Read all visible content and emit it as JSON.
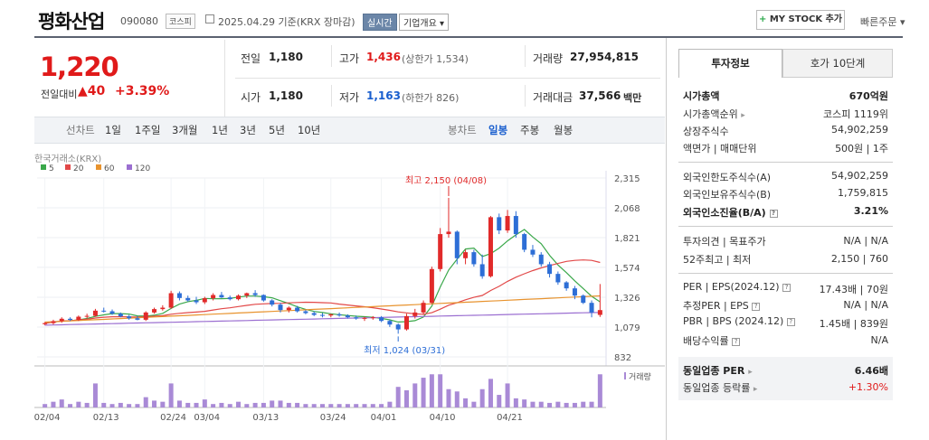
{
  "header": {
    "company_name": "평화산업",
    "stock_code": "090080",
    "market_tag": "코스피",
    "date_text": "2025.04.29  기준(KRX 장마감)",
    "realtime_label": "실시간",
    "overview_label": "기업개요 ▾",
    "mystock_plus": "+",
    "mystock_label": "MY STOCK 추가",
    "quick_order_label": "빠른주문 ▾"
  },
  "price": {
    "current": "1,220",
    "change_label": "전일대비",
    "change_arrow": "▲",
    "change_amount": "40",
    "change_pct": "+3.39%"
  },
  "quote": {
    "prev_close_label": "전일",
    "prev_close": "1,180",
    "open_label": "시가",
    "open": "1,180",
    "high_label": "고가",
    "high": "1,436",
    "upper_limit": "(상한가 1,534)",
    "low_label": "저가",
    "low": "1,163",
    "lower_limit": "(하한가 826)",
    "volume_label": "거래량",
    "volume": "27,954,815",
    "amount_label": "거래대금",
    "amount": "37,566",
    "amount_unit": "백만"
  },
  "periods": {
    "line_label": "선차트",
    "line_items": [
      "1일",
      "1주일",
      "3개월",
      "1년",
      "3년",
      "5년",
      "10년"
    ],
    "candle_label": "봉차트",
    "candle_items": [
      "일봉",
      "주봉",
      "월봉"
    ],
    "active_candle": "일봉"
  },
  "chart_data": {
    "type": "candlestick",
    "source_label": "한국거래소(KRX)",
    "ma_legend": [
      {
        "name": "5",
        "color": "#3aa84a"
      },
      {
        "name": "20",
        "color": "#e24848"
      },
      {
        "name": "60",
        "color": "#e8932e"
      },
      {
        "name": "120",
        "color": "#9b6fd1"
      }
    ],
    "y_ticks": [
      2315,
      2068,
      1821,
      1574,
      1326,
      1079,
      832
    ],
    "y_tick_labels": [
      "2,315",
      "2,068",
      "1,821",
      "1,574",
      "1,326",
      "1,079",
      "832"
    ],
    "x_ticks": [
      "02/04",
      "02/13",
      "02/24",
      "03/04",
      "03/13",
      "03/24",
      "04/01",
      "04/10",
      "04/21"
    ],
    "high_annotation": "최고 2,150 (04/08)",
    "low_annotation": "최저 1,024 (03/31)",
    "volume_label": "거래량",
    "candles": [
      [
        1103,
        1120,
        1095,
        1112
      ],
      [
        1112,
        1140,
        1100,
        1128
      ],
      [
        1128,
        1160,
        1115,
        1148
      ],
      [
        1148,
        1160,
        1130,
        1138
      ],
      [
        1138,
        1175,
        1130,
        1165
      ],
      [
        1165,
        1190,
        1150,
        1172
      ],
      [
        1172,
        1230,
        1165,
        1215
      ],
      [
        1215,
        1240,
        1200,
        1210
      ],
      [
        1210,
        1225,
        1180,
        1190
      ],
      [
        1190,
        1200,
        1160,
        1168
      ],
      [
        1168,
        1180,
        1140,
        1152
      ],
      [
        1152,
        1170,
        1135,
        1140
      ],
      [
        1140,
        1210,
        1130,
        1200
      ],
      [
        1200,
        1240,
        1190,
        1228
      ],
      [
        1228,
        1260,
        1215,
        1240
      ],
      [
        1240,
        1380,
        1230,
        1360
      ],
      [
        1360,
        1375,
        1300,
        1320
      ],
      [
        1320,
        1340,
        1290,
        1300
      ],
      [
        1300,
        1330,
        1270,
        1285
      ],
      [
        1285,
        1330,
        1270,
        1318
      ],
      [
        1318,
        1360,
        1300,
        1345
      ],
      [
        1345,
        1370,
        1320,
        1325
      ],
      [
        1325,
        1340,
        1300,
        1310
      ],
      [
        1310,
        1350,
        1300,
        1340
      ],
      [
        1340,
        1365,
        1320,
        1360
      ],
      [
        1360,
        1385,
        1330,
        1345
      ],
      [
        1345,
        1350,
        1290,
        1300
      ],
      [
        1300,
        1310,
        1250,
        1265
      ],
      [
        1265,
        1280,
        1200,
        1220
      ],
      [
        1220,
        1250,
        1200,
        1240
      ],
      [
        1240,
        1255,
        1200,
        1210
      ],
      [
        1210,
        1220,
        1185,
        1195
      ],
      [
        1195,
        1210,
        1170,
        1180
      ],
      [
        1180,
        1195,
        1160,
        1175
      ],
      [
        1175,
        1190,
        1160,
        1185
      ],
      [
        1185,
        1200,
        1165,
        1175
      ],
      [
        1175,
        1185,
        1150,
        1160
      ],
      [
        1160,
        1175,
        1140,
        1150
      ],
      [
        1150,
        1165,
        1130,
        1155
      ],
      [
        1155,
        1170,
        1140,
        1160
      ],
      [
        1160,
        1170,
        1120,
        1130
      ],
      [
        1130,
        1140,
        1080,
        1100
      ],
      [
        1100,
        1110,
        1024,
        1060
      ],
      [
        1060,
        1190,
        1050,
        1170
      ],
      [
        1170,
        1230,
        1150,
        1200
      ],
      [
        1200,
        1300,
        1180,
        1280
      ],
      [
        1280,
        1580,
        1270,
        1560
      ],
      [
        1560,
        1900,
        1540,
        1850
      ],
      [
        1850,
        2150,
        1820,
        1870
      ],
      [
        1870,
        1880,
        1600,
        1650
      ],
      [
        1650,
        1720,
        1600,
        1700
      ],
      [
        1700,
        1720,
        1580,
        1600
      ],
      [
        1600,
        1680,
        1480,
        1500
      ],
      [
        1500,
        2000,
        1490,
        1990
      ],
      [
        1990,
        2020,
        1850,
        1880
      ],
      [
        1880,
        2050,
        1860,
        2000
      ],
      [
        2000,
        2040,
        1820,
        1850
      ],
      [
        1850,
        1860,
        1700,
        1720
      ],
      [
        1720,
        1760,
        1660,
        1680
      ],
      [
        1680,
        1700,
        1580,
        1600
      ],
      [
        1600,
        1620,
        1490,
        1520
      ],
      [
        1520,
        1540,
        1430,
        1450
      ],
      [
        1450,
        1460,
        1380,
        1400
      ],
      [
        1400,
        1420,
        1310,
        1340
      ],
      [
        1340,
        1350,
        1270,
        1280
      ],
      [
        1280,
        1300,
        1160,
        1200
      ],
      [
        1180,
        1436,
        1163,
        1220
      ]
    ],
    "volumes": [
      1.5,
      2.5,
      3.5,
      1.5,
      2.5,
      2.0,
      10.5,
      2.0,
      1.5,
      2.0,
      1.5,
      1.5,
      4.5,
      3.0,
      2.5,
      10.5,
      3.0,
      2.0,
      2.0,
      3.5,
      1.5,
      2.0,
      1.5,
      2.5,
      1.5,
      2.0,
      2.0,
      3.0,
      3.0,
      2.0,
      2.0,
      1.5,
      1.5,
      1.5,
      1.5,
      1.5,
      1.5,
      1.5,
      1.5,
      1.5,
      1.5,
      2.5,
      9.0,
      7.5,
      10.5,
      13.0,
      14.5,
      14.5,
      8.0,
      7.0,
      4.0,
      2.5,
      8.0,
      12.5,
      5.5,
      10.5,
      4.0,
      3.5,
      2.5,
      2.5,
      2.0,
      2.5,
      2.0,
      2.0,
      2.5,
      2.5,
      14.5
    ]
  },
  "right_panel": {
    "tab_invest": "투자정보",
    "tab_hoga": "호가 10단계",
    "market_cap_label": "시가총액",
    "market_cap": "670억원",
    "cap_rank_label": "시가총액순위",
    "cap_rank": "코스피 1119위",
    "shares_label": "상장주식수",
    "shares": "54,902,259",
    "par_label": "액면가 | 매매단위",
    "par": "500원 | 1주",
    "foreign_limit_label": "외국인한도주식수(A)",
    "foreign_limit": "54,902,259",
    "foreign_hold_label": "외국인보유주식수(B)",
    "foreign_hold": "1,759,815",
    "foreign_ratio_label": "외국인소진율(B/A)",
    "foreign_ratio": "3.21%",
    "opinion_label": "투자의견 | 목표주가",
    "opinion": "N/A | N/A",
    "week52_label": "52주최고 | 최저",
    "week52": "2,150 | 760",
    "per_label": "PER | EPS(2024.12)",
    "per": "17.43배 | 70원",
    "est_per_label": "추정PER | EPS",
    "est_per": "N/A | N/A",
    "pbr_label": "PBR | BPS (2024.12)",
    "pbr": "1.45배 | 839원",
    "div_label": "배당수익률",
    "div": "N/A",
    "peer_per_label": "동일업종 PER",
    "peer_per": "6.46배",
    "peer_rate_label": "동일업종 등락률",
    "peer_rate": "+1.30%"
  }
}
